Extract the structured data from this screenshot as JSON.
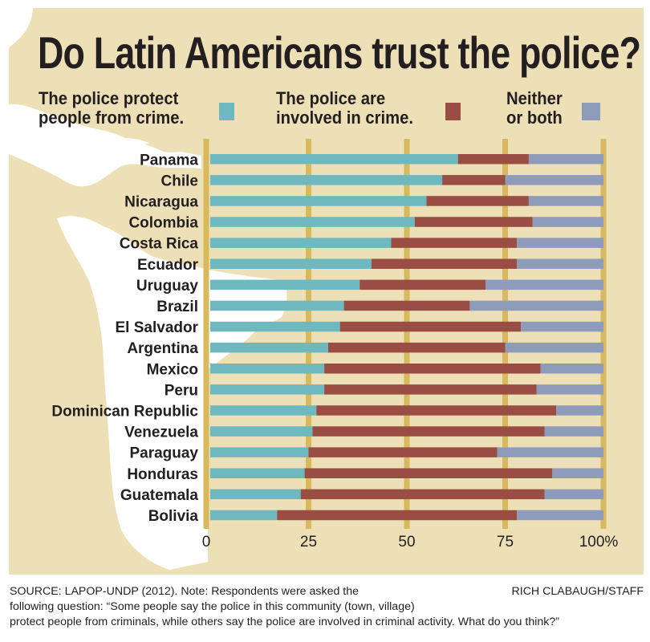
{
  "title": "Do Latin Americans trust the police?",
  "legend": [
    {
      "key": "protect",
      "line1": "The police protect",
      "line2": "people from crime.",
      "color": "#6db9bf"
    },
    {
      "key": "involved",
      "line1": "The police are",
      "line2": "involved in crime.",
      "color": "#9a4e43"
    },
    {
      "key": "neither",
      "line1": "Neither",
      "line2": "or both",
      "color": "#8f9bbb"
    }
  ],
  "colors": {
    "background": "#ede0b7",
    "land": "#ffffff",
    "gridline": "#d8b95e",
    "text": "#231f20"
  },
  "chart_data": {
    "type": "bar",
    "orientation": "horizontal",
    "stacked": true,
    "title": "Do Latin Americans trust the police?",
    "xlabel": "",
    "ylabel": "",
    "xlim": [
      0,
      100
    ],
    "x_ticks": [
      0,
      25,
      50,
      75,
      100
    ],
    "x_tick_labels": [
      "0",
      "25",
      "50",
      "75",
      "100%"
    ],
    "grid": true,
    "legend_position": "top",
    "categories": [
      "Panama",
      "Chile",
      "Nicaragua",
      "Colombia",
      "Costa Rica",
      "Ecuador",
      "Uruguay",
      "Brazil",
      "El Salvador",
      "Argentina",
      "Mexico",
      "Peru",
      "Dominican Republic",
      "Venezuela",
      "Paraguay",
      "Honduras",
      "Guatemala",
      "Bolivia"
    ],
    "series": [
      {
        "name": "The police protect people from crime.",
        "color": "#6db9bf",
        "values": [
          63,
          59,
          55,
          52,
          46,
          41,
          38,
          34,
          33,
          30,
          29,
          29,
          27,
          26,
          25,
          24,
          23,
          17
        ]
      },
      {
        "name": "The police are involved in crime.",
        "color": "#9a4e43",
        "values": [
          18,
          16,
          26,
          30,
          32,
          37,
          32,
          32,
          46,
          45,
          55,
          54,
          61,
          59,
          48,
          63,
          62,
          61
        ]
      },
      {
        "name": "Neither or both",
        "color": "#8f9bbb",
        "values": [
          19,
          25,
          19,
          18,
          22,
          22,
          30,
          34,
          21,
          25,
          16,
          17,
          12,
          15,
          27,
          13,
          15,
          22
        ]
      }
    ]
  },
  "footer": {
    "line1": "SOURCE: LAPOP-UNDP (2012). Note: Respondents were asked the",
    "line2": "following question: “Some people say the police in this community (town, village)",
    "line3": "protect people from criminals, while others say the police are involved in criminal activity. What do you think?”",
    "credit": "RICH CLABAUGH/STAFF"
  }
}
